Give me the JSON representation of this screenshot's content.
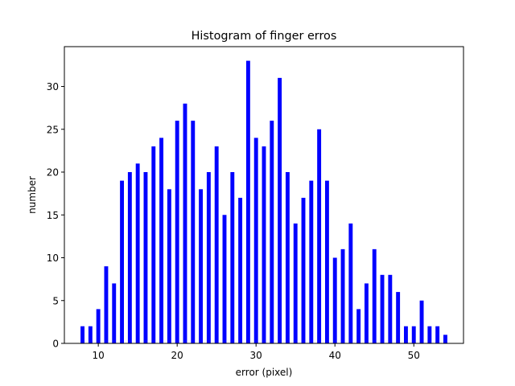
{
  "chart_data": {
    "type": "bar",
    "title": "Histogram of finger erros",
    "xlabel": "error (pixel)",
    "ylabel": "number",
    "xlim": [
      5.7,
      56.3
    ],
    "ylim": [
      0,
      34.65
    ],
    "xticks": [
      10,
      20,
      30,
      40,
      50
    ],
    "yticks": [
      0,
      5,
      10,
      15,
      20,
      25,
      30
    ],
    "bar_width": 0.5,
    "bar_color": "#0000ff",
    "grid": false,
    "legend": "none",
    "x": [
      8,
      9,
      10,
      11,
      12,
      13,
      14,
      15,
      16,
      17,
      18,
      19,
      20,
      21,
      22,
      23,
      24,
      25,
      26,
      27,
      28,
      29,
      30,
      31,
      32,
      33,
      34,
      35,
      36,
      37,
      38,
      39,
      40,
      41,
      42,
      43,
      44,
      45,
      46,
      47,
      48,
      49,
      50,
      51,
      52,
      53,
      54
    ],
    "values": [
      2,
      2,
      4,
      9,
      7,
      19,
      20,
      21,
      20,
      23,
      24,
      18,
      26,
      28,
      26,
      18,
      20,
      23,
      15,
      20,
      17,
      33,
      24,
      23,
      26,
      31,
      20,
      14,
      17,
      19,
      25,
      19,
      10,
      11,
      14,
      4,
      7,
      11,
      8,
      8,
      6,
      2,
      2,
      5,
      2,
      2,
      1
    ]
  }
}
